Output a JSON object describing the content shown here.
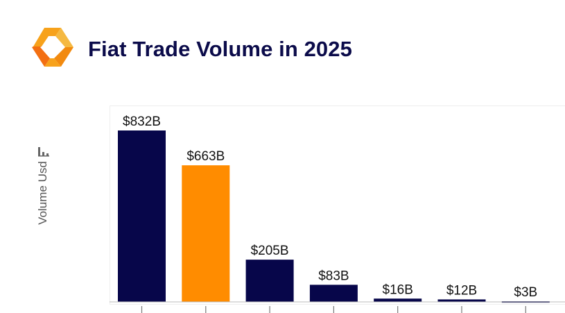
{
  "header": {
    "title": "Fiat Trade Volume in 2025",
    "logo": "orange-hexagon-logo-icon"
  },
  "colors": {
    "primary": "#07064a",
    "highlight": "#ff8c00",
    "title": "#0b0b4a",
    "axis_text": "#555555"
  },
  "chart_data": {
    "type": "bar",
    "title": "Fiat Trade Volume in 2025",
    "xlabel": "",
    "ylabel": "Volume Usd",
    "unit": "USD billions",
    "categories": [
      "",
      "",
      "",
      "",
      "",
      "",
      ""
    ],
    "values": [
      832,
      663,
      205,
      83,
      16,
      12,
      3
    ],
    "labels": [
      "$832B",
      "$663B",
      "$205B",
      "$83B",
      "$16B",
      "$12B",
      "$3B"
    ],
    "highlight_index": 1,
    "ylim": [
      0,
      832
    ],
    "grid": false,
    "legend": "none"
  }
}
